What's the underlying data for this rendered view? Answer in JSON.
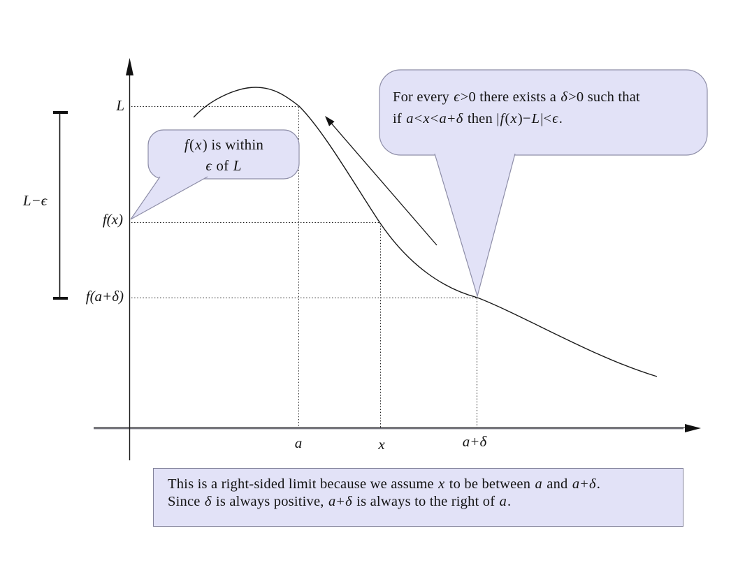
{
  "title": "Right-sided limit diagram",
  "colors": {
    "bubble_fill": "#e2e2f7",
    "bubble_border": "#8e8ea8",
    "note_border": "#83839b",
    "ink": "#1a1a1a",
    "x_axis_gray": "#75757f"
  },
  "y_axis_labels": {
    "L": "L",
    "f_x": "f(x)",
    "f_a_plus_delta": "f(a+δ)",
    "interval": "L−ϵ"
  },
  "x_axis_labels": {
    "a": "a",
    "x": "x",
    "a_plus_delta": "a+δ"
  },
  "top_bubble": {
    "line1": [
      {
        "t": "For every "
      },
      {
        "t": "ϵ",
        "i": 1
      },
      {
        "t": ">0 there exists a "
      },
      {
        "t": "δ",
        "i": 1
      },
      {
        "t": ">0 such that"
      }
    ],
    "line2": [
      {
        "t": "if "
      },
      {
        "t": "a",
        "i": 1
      },
      {
        "t": "<"
      },
      {
        "t": "x",
        "i": 1
      },
      {
        "t": "<"
      },
      {
        "t": "a",
        "i": 1
      },
      {
        "t": "+"
      },
      {
        "t": "δ",
        "i": 1
      },
      {
        "t": " then |"
      },
      {
        "t": "f",
        "i": 1
      },
      {
        "t": "("
      },
      {
        "t": "x",
        "i": 1
      },
      {
        "t": ")−"
      },
      {
        "t": "L",
        "i": 1
      },
      {
        "t": "|<"
      },
      {
        "t": "ϵ",
        "i": 1
      },
      {
        "t": "."
      }
    ]
  },
  "side_bubble": {
    "line1": [
      {
        "t": "f",
        "i": 1
      },
      {
        "t": "("
      },
      {
        "t": "x",
        "i": 1
      },
      {
        "t": ") is within"
      }
    ],
    "line2": [
      {
        "t": "ϵ",
        "i": 1
      },
      {
        "t": " of "
      },
      {
        "t": "L",
        "i": 1
      }
    ]
  },
  "bottom_note": {
    "line1": [
      {
        "t": "This is a right-sided limit because we assume "
      },
      {
        "t": "x",
        "i": 1
      },
      {
        "t": " to be between "
      },
      {
        "t": "a",
        "i": 1
      },
      {
        "t": " and "
      },
      {
        "t": "a",
        "i": 1
      },
      {
        "t": "+"
      },
      {
        "t": "δ",
        "i": 1
      },
      {
        "t": "."
      }
    ],
    "line2": [
      {
        "t": "Since "
      },
      {
        "t": "δ",
        "i": 1
      },
      {
        "t": " is always positive, "
      },
      {
        "t": "a",
        "i": 1
      },
      {
        "t": "+"
      },
      {
        "t": "δ",
        "i": 1
      },
      {
        "t": " is always to the right of "
      },
      {
        "t": "a",
        "i": 1
      },
      {
        "t": "."
      }
    ]
  }
}
